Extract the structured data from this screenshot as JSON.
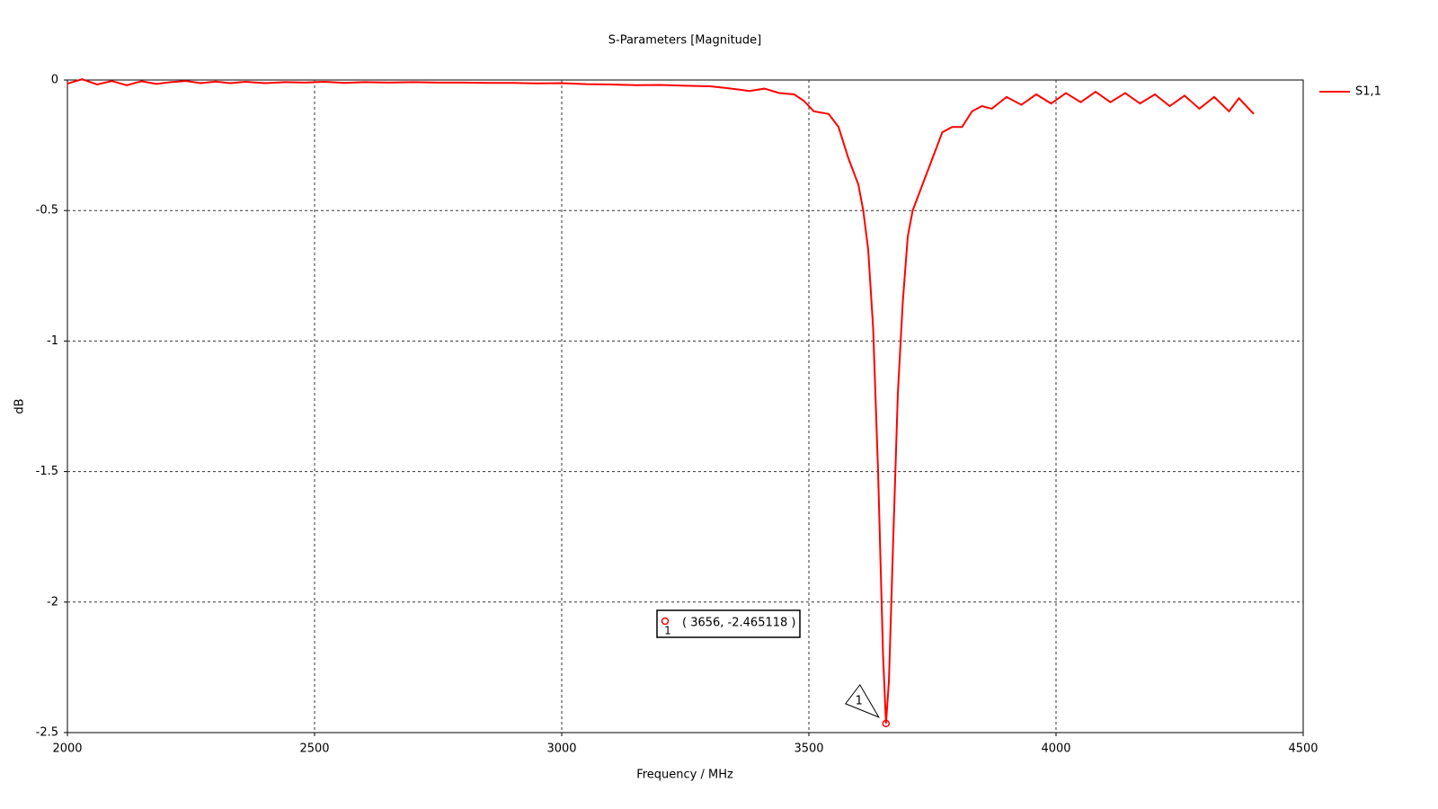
{
  "chart_data": {
    "type": "line",
    "title": "S-Parameters [Magnitude]",
    "x_label": "Frequency / MHz",
    "y_label": "dB",
    "xlim": [
      2000,
      4500
    ],
    "xticks": [
      2000,
      2500,
      3000,
      3500,
      4000,
      4500
    ],
    "ylim": [
      -2.5,
      0
    ],
    "yticks": [
      0,
      -0.5,
      -1,
      -1.5,
      -2,
      -2.5
    ],
    "grid": true,
    "legend": "right",
    "x": [
      2000,
      2030,
      2060,
      2090,
      2120,
      2150,
      2180,
      2210,
      2240,
      2270,
      2300,
      2330,
      2360,
      2400,
      2440,
      2480,
      2520,
      2560,
      2600,
      2650,
      2700,
      2750,
      2800,
      2850,
      2900,
      2950,
      3000,
      3050,
      3100,
      3150,
      3200,
      3250,
      3300,
      3330,
      3360,
      3380,
      3410,
      3440,
      3470,
      3490,
      3510,
      3540,
      3560,
      3580,
      3600,
      3610,
      3620,
      3630,
      3640,
      3650,
      3656,
      3662,
      3670,
      3680,
      3690,
      3700,
      3710,
      3730,
      3750,
      3770,
      3790,
      3810,
      3830,
      3850,
      3870,
      3900,
      3930,
      3960,
      3990,
      4020,
      4050,
      4080,
      4110,
      4140,
      4170,
      4200,
      4230,
      4260,
      4290,
      4320,
      4350,
      4370,
      4400
    ],
    "series": [
      {
        "name": "S1,1",
        "color": "#ff0000",
        "values": [
          -0.014,
          0.003,
          -0.017,
          -0.004,
          -0.02,
          -0.005,
          -0.015,
          -0.008,
          -0.004,
          -0.012,
          -0.006,
          -0.012,
          -0.007,
          -0.012,
          -0.008,
          -0.01,
          -0.007,
          -0.011,
          -0.008,
          -0.01,
          -0.008,
          -0.01,
          -0.01,
          -0.011,
          -0.011,
          -0.013,
          -0.012,
          -0.016,
          -0.017,
          -0.02,
          -0.019,
          -0.022,
          -0.024,
          -0.03,
          -0.037,
          -0.042,
          -0.033,
          -0.05,
          -0.055,
          -0.08,
          -0.12,
          -0.13,
          -0.18,
          -0.3,
          -0.4,
          -0.5,
          -0.65,
          -0.95,
          -1.5,
          -2.2,
          -2.465118,
          -2.3,
          -1.8,
          -1.2,
          -0.85,
          -0.6,
          -0.5,
          -0.4,
          -0.3,
          -0.2,
          -0.18,
          -0.18,
          -0.12,
          -0.1,
          -0.11,
          -0.065,
          -0.095,
          -0.055,
          -0.09,
          -0.05,
          -0.085,
          -0.045,
          -0.085,
          -0.05,
          -0.09,
          -0.055,
          -0.1,
          -0.06,
          -0.11,
          -0.065,
          -0.12,
          -0.07,
          -0.13
        ]
      }
    ],
    "marker": {
      "x": 3656,
      "y": -2.465118,
      "id": "1",
      "label": "( 3656, -2.465118 )"
    }
  }
}
